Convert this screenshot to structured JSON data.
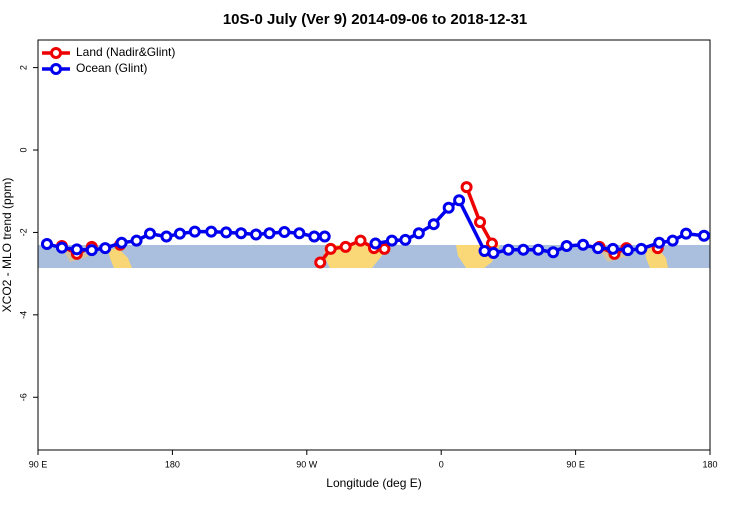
{
  "chart_data": {
    "type": "line",
    "title": "10S-0 July (Ver 9)   2014-09-06 to 2018-12-31",
    "x_label": "Longitude (deg E)",
    "y_label": "XCO2 - MLO trend (ppm)",
    "xlim": [
      90,
      540
    ],
    "xticks": [
      {
        "value": 90,
        "label": "90 E"
      },
      {
        "value": 180,
        "label": "180"
      },
      {
        "value": 270,
        "label": "90 W"
      },
      {
        "value": 360,
        "label": "0"
      },
      {
        "value": 450,
        "label": "90 E"
      },
      {
        "value": 540,
        "label": "180"
      }
    ],
    "ylim": [
      -7.28,
      2.67
    ],
    "yticks": [
      2,
      0,
      -2,
      -4,
      -6
    ],
    "legend": "top-left",
    "series": [
      {
        "name": "Land (Nadir&Glint)",
        "color": "#ee0000",
        "x": [
          106,
          116,
          126,
          null,
          145,
          null,
          279,
          286,
          296,
          306,
          315,
          322,
          null,
          377,
          386,
          394,
          null,
          466,
          476,
          484,
          null,
          505
        ],
        "values": [
          -2.33,
          -2.52,
          -2.35,
          null,
          -2.3,
          null,
          -2.73,
          -2.4,
          -2.35,
          -2.2,
          -2.38,
          -2.4,
          null,
          -0.9,
          -1.75,
          -2.27,
          null,
          -2.35,
          -2.52,
          -2.38,
          null,
          -2.38
        ]
      },
      {
        "name": "Ocean (Glint)",
        "color": "#0000ee",
        "x": [
          96,
          106,
          116,
          126,
          135,
          146,
          156,
          165,
          176,
          185,
          195,
          206,
          216,
          226,
          236,
          245,
          255,
          265,
          275,
          282,
          null,
          316,
          327,
          336,
          345,
          355,
          365,
          372,
          389,
          395,
          405,
          415,
          425,
          435,
          444,
          455,
          465,
          475,
          485,
          494,
          506,
          515,
          524,
          536
        ],
        "values": [
          -2.28,
          -2.37,
          -2.41,
          -2.43,
          -2.38,
          -2.25,
          -2.2,
          -2.03,
          -2.1,
          -2.03,
          -1.98,
          -1.98,
          -2.0,
          -2.02,
          -2.05,
          -2.02,
          -1.99,
          -2.02,
          -2.1,
          -2.1,
          null,
          -2.27,
          -2.2,
          -2.18,
          -2.02,
          -1.8,
          -1.4,
          -1.22,
          -2.45,
          -2.5,
          -2.42,
          -2.42,
          -2.42,
          -2.48,
          -2.33,
          -2.3,
          -2.38,
          -2.4,
          -2.43,
          -2.4,
          -2.25,
          -2.2,
          -2.03,
          -2.08
        ]
      }
    ]
  }
}
